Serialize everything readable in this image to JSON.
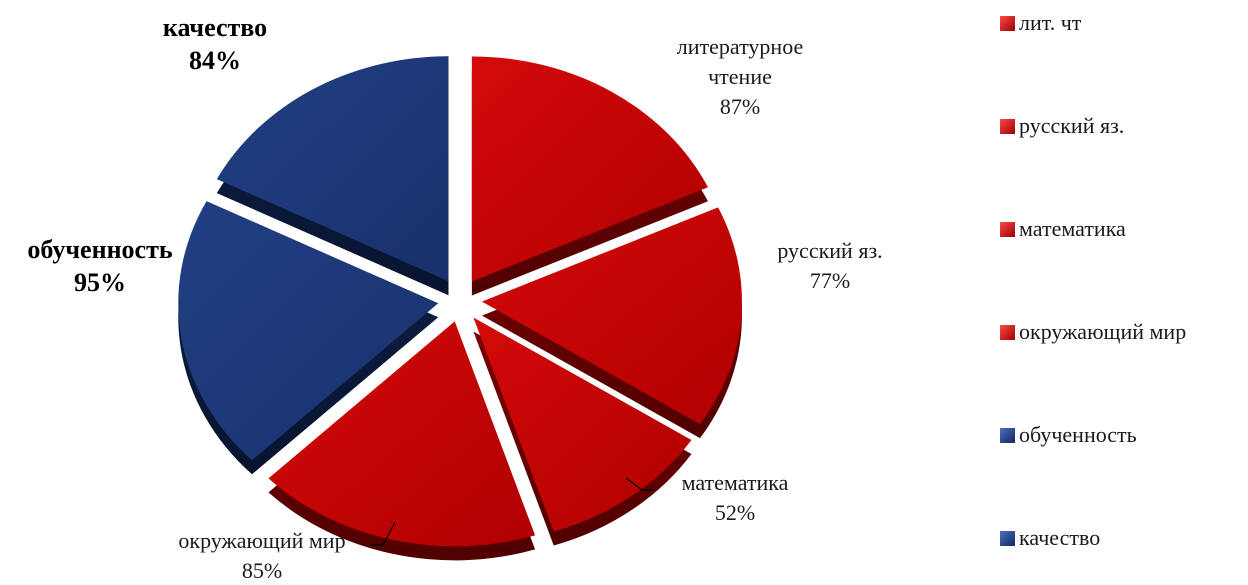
{
  "chart_data": {
    "type": "pie",
    "title": "",
    "slices": [
      {
        "label": "литературное чтение",
        "legend": "лит. чт",
        "percent": "87%",
        "value": 87,
        "color": "#c00000",
        "bold": false
      },
      {
        "label": "русский яз.",
        "legend": "русский яз.",
        "percent": "77%",
        "value": 77,
        "color": "#c00000",
        "bold": false
      },
      {
        "label": "математика",
        "legend": "математика",
        "percent": "52%",
        "value": 52,
        "color": "#c00000",
        "bold": false
      },
      {
        "label": "окружающий мир",
        "legend": "окружающий мир",
        "percent": "85%",
        "value": 85,
        "color": "#c00000",
        "bold": false
      },
      {
        "label": "обученность",
        "legend": "обученность",
        "percent": "95%",
        "value": 95,
        "color": "#1f3b7a",
        "bold": true
      },
      {
        "label": "качество",
        "legend": "качество",
        "percent": "84%",
        "value": 84,
        "color": "#1f3b7a",
        "bold": true
      }
    ],
    "legend_position": "right",
    "exploded": true,
    "three_d": true
  }
}
